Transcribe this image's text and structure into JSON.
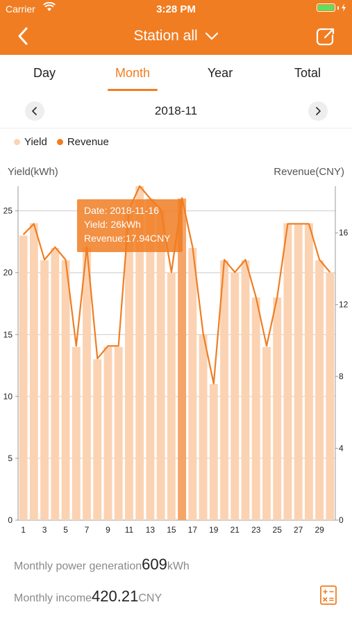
{
  "status_bar": {
    "carrier": "Carrier",
    "time": "3:28 PM"
  },
  "navbar": {
    "title": "Station all"
  },
  "tabs": [
    "Day",
    "Month",
    "Year",
    "Total"
  ],
  "active_tab": "Month",
  "date": "2018-11",
  "legend": {
    "yield": "Yield",
    "revenue": "Revenue"
  },
  "colors": {
    "accent": "#f07d22",
    "bar": "#fbd3b3",
    "bar_selected": "#f5a567",
    "line": "#f07d22"
  },
  "chart_data": {
    "type": "bar",
    "ylabel_left": "Yield(kWh)",
    "ylabel_right": "Revenue(CNY)",
    "ylim_left": [
      0,
      27
    ],
    "ylim_right": [
      0,
      18.6
    ],
    "yticks_left": [
      0,
      5,
      10,
      15,
      20,
      25
    ],
    "yticks_right": [
      0,
      4,
      8,
      12,
      16
    ],
    "xticks": [
      1,
      3,
      5,
      7,
      9,
      11,
      13,
      15,
      17,
      19,
      21,
      23,
      25,
      27,
      29
    ],
    "x": [
      1,
      2,
      3,
      4,
      5,
      6,
      7,
      8,
      9,
      10,
      11,
      12,
      13,
      14,
      15,
      16,
      17,
      18,
      19,
      20,
      21,
      22,
      23,
      24,
      25,
      26,
      27,
      28,
      29,
      30
    ],
    "series": [
      {
        "name": "Yield",
        "axis": "left",
        "values": [
          23,
          24,
          21,
          22,
          21,
          14,
          22,
          13,
          14,
          14,
          25,
          27,
          26,
          25,
          20,
          26,
          22,
          15,
          11,
          21,
          20,
          21,
          18,
          14,
          18,
          24,
          24,
          24,
          21,
          20
        ]
      },
      {
        "name": "Revenue",
        "axis": "right",
        "values": [
          15.9,
          16.5,
          14.5,
          15.2,
          14.5,
          9.7,
          15.2,
          9.0,
          9.7,
          9.7,
          17.3,
          18.6,
          17.9,
          17.3,
          13.8,
          17.94,
          15.2,
          10.4,
          7.6,
          14.5,
          13.8,
          14.5,
          12.4,
          9.7,
          12.4,
          16.5,
          16.5,
          16.5,
          14.5,
          13.8
        ]
      }
    ],
    "selected_index": 15,
    "grid": true
  },
  "tooltip": {
    "date": "Date: 2018-11-16",
    "yield": "Yield: 26kWh",
    "revenue": "Revenue:17.94CNY"
  },
  "summary": {
    "power_label": "Monthly  power generation",
    "power_value": "609",
    "power_unit": "kWh",
    "income_label": "Monthly income",
    "income_value": "420.21",
    "income_unit": "CNY"
  }
}
